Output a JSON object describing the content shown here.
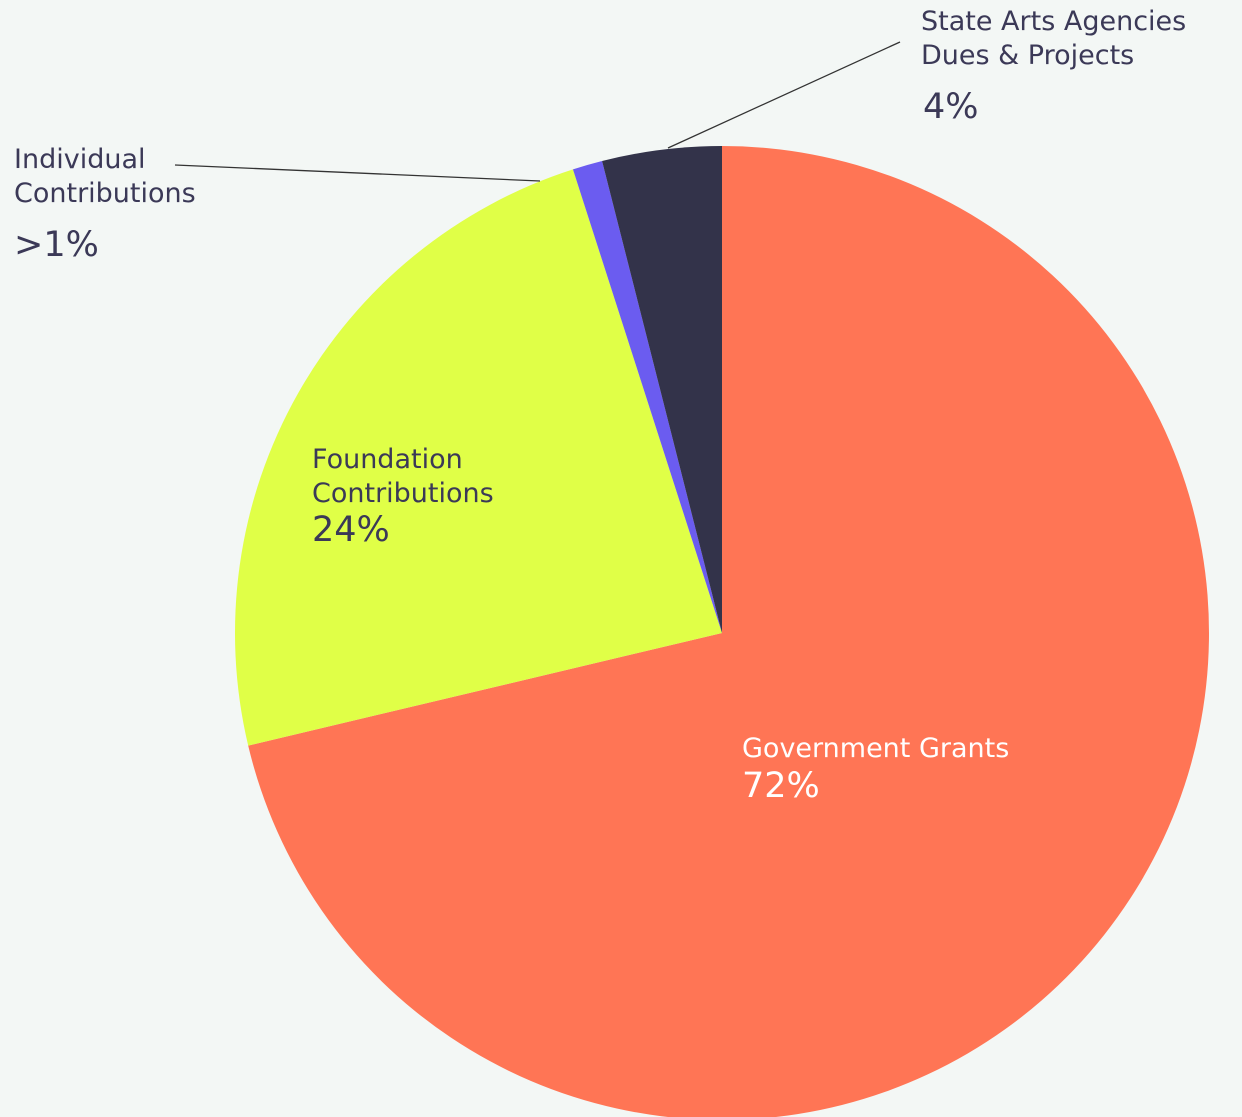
{
  "chart_data": {
    "type": "pie",
    "categories": [
      "Government Grants",
      "Foundation Contributions",
      "Individual Contributions",
      "State Arts Agencies Dues & Projects"
    ],
    "values": [
      72,
      24,
      1,
      4
    ],
    "value_labels": [
      "72%",
      "24%",
      ">1%",
      "4%"
    ],
    "colors": [
      "#ff7555",
      "#e0ff47",
      "#6b5cf0",
      "#33334a"
    ]
  }
}
